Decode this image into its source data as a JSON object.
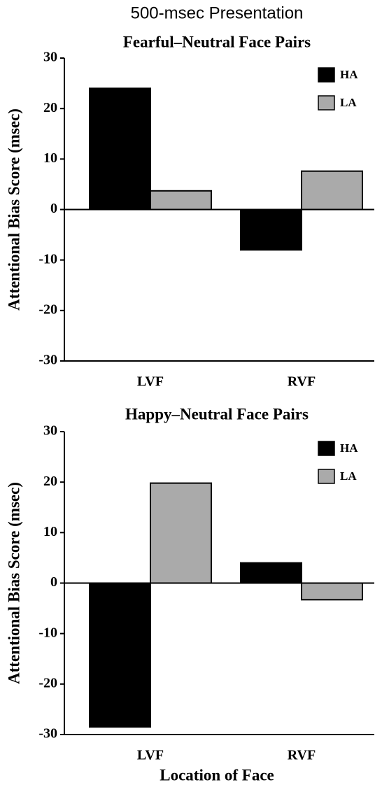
{
  "title": "500-msec Presentation",
  "chart_data": [
    {
      "type": "bar",
      "title": "Fearful–Neutral Face Pairs",
      "ylabel": "Attentional Bias Score (msec)",
      "categories": [
        "LVF",
        "RVF"
      ],
      "series": [
        {
          "name": "HA",
          "color": "#000000",
          "values": [
            24,
            -8
          ]
        },
        {
          "name": "LA",
          "color": "#aaaaaa",
          "values": [
            3.7,
            7.6
          ]
        }
      ],
      "ylim": [
        -30,
        30
      ],
      "yticks": [
        -30,
        -20,
        -10,
        0,
        10,
        20,
        30
      ],
      "legend": "upper right"
    },
    {
      "type": "bar",
      "title": "Happy–Neutral Face Pairs",
      "ylabel": "Attentional Bias Score (msec)",
      "xlabel": "Location of Face",
      "categories": [
        "LVF",
        "RVF"
      ],
      "series": [
        {
          "name": "HA",
          "color": "#000000",
          "values": [
            -28.5,
            4
          ]
        },
        {
          "name": "LA",
          "color": "#aaaaaa",
          "values": [
            19.8,
            -3.3
          ]
        }
      ],
      "ylim": [
        -30,
        30
      ],
      "yticks": [
        -30,
        -20,
        -10,
        0,
        10,
        20,
        30
      ],
      "legend": "upper right"
    }
  ]
}
